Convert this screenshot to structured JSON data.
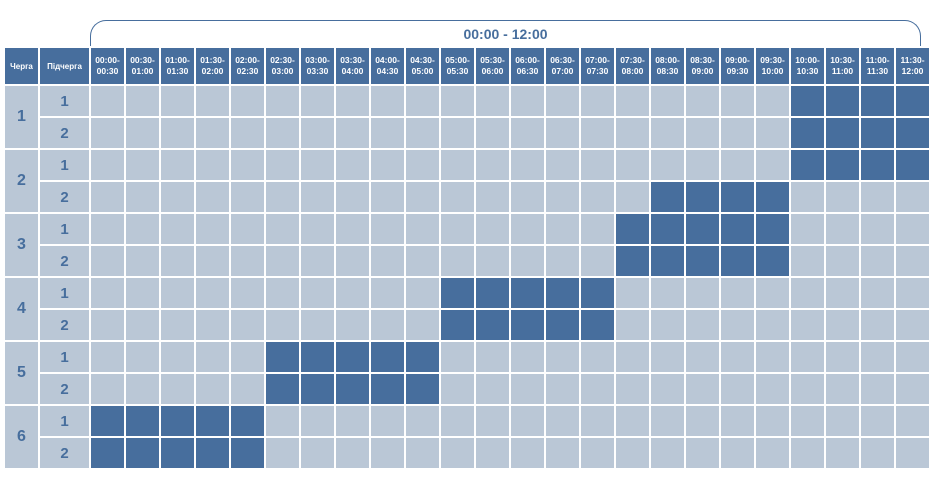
{
  "range_label": "00:00 - 12:00",
  "headers": {
    "queue": "Черга",
    "subqueue": "Підчерга"
  },
  "time_slots": [
    {
      "start": "00:00-",
      "end": "00:30"
    },
    {
      "start": "00:30-",
      "end": "01:00"
    },
    {
      "start": "01:00-",
      "end": "01:30"
    },
    {
      "start": "01:30-",
      "end": "02:00"
    },
    {
      "start": "02:00-",
      "end": "02:30"
    },
    {
      "start": "02:30-",
      "end": "03:00"
    },
    {
      "start": "03:00-",
      "end": "03:30"
    },
    {
      "start": "03:30-",
      "end": "04:00"
    },
    {
      "start": "04:00-",
      "end": "04:30"
    },
    {
      "start": "04:30-",
      "end": "05:00"
    },
    {
      "start": "05:00-",
      "end": "05:30"
    },
    {
      "start": "05:30-",
      "end": "06:00"
    },
    {
      "start": "06:00-",
      "end": "06:30"
    },
    {
      "start": "06:30-",
      "end": "07:00"
    },
    {
      "start": "07:00-",
      "end": "07:30"
    },
    {
      "start": "07:30-",
      "end": "08:00"
    },
    {
      "start": "08:00-",
      "end": "08:30"
    },
    {
      "start": "08:30-",
      "end": "09:00"
    },
    {
      "start": "09:00-",
      "end": "09:30"
    },
    {
      "start": "09:30-",
      "end": "10:00"
    },
    {
      "start": "10:00-",
      "end": "10:30"
    },
    {
      "start": "10:30-",
      "end": "11:00"
    },
    {
      "start": "11:00-",
      "end": "11:30"
    },
    {
      "start": "11:30-",
      "end": "12:00"
    }
  ],
  "colors": {
    "outage": "#476e9d",
    "power_on": "#bac7d6"
  },
  "queues": [
    {
      "label": "1",
      "subqueues": [
        {
          "label": "1",
          "slots": [
            0,
            0,
            0,
            0,
            0,
            0,
            0,
            0,
            0,
            0,
            0,
            0,
            0,
            0,
            0,
            0,
            0,
            0,
            0,
            0,
            1,
            1,
            1,
            1
          ]
        },
        {
          "label": "2",
          "slots": [
            0,
            0,
            0,
            0,
            0,
            0,
            0,
            0,
            0,
            0,
            0,
            0,
            0,
            0,
            0,
            0,
            0,
            0,
            0,
            0,
            1,
            1,
            1,
            1
          ]
        }
      ]
    },
    {
      "label": "2",
      "subqueues": [
        {
          "label": "1",
          "slots": [
            0,
            0,
            0,
            0,
            0,
            0,
            0,
            0,
            0,
            0,
            0,
            0,
            0,
            0,
            0,
            0,
            0,
            0,
            0,
            0,
            1,
            1,
            1,
            1
          ]
        },
        {
          "label": "2",
          "slots": [
            0,
            0,
            0,
            0,
            0,
            0,
            0,
            0,
            0,
            0,
            0,
            0,
            0,
            0,
            0,
            0,
            1,
            1,
            1,
            1,
            0,
            0,
            0,
            0
          ]
        }
      ]
    },
    {
      "label": "3",
      "subqueues": [
        {
          "label": "1",
          "slots": [
            0,
            0,
            0,
            0,
            0,
            0,
            0,
            0,
            0,
            0,
            0,
            0,
            0,
            0,
            0,
            1,
            1,
            1,
            1,
            1,
            0,
            0,
            0,
            0
          ]
        },
        {
          "label": "2",
          "slots": [
            0,
            0,
            0,
            0,
            0,
            0,
            0,
            0,
            0,
            0,
            0,
            0,
            0,
            0,
            0,
            1,
            1,
            1,
            1,
            1,
            0,
            0,
            0,
            0
          ]
        }
      ]
    },
    {
      "label": "4",
      "subqueues": [
        {
          "label": "1",
          "slots": [
            0,
            0,
            0,
            0,
            0,
            0,
            0,
            0,
            0,
            0,
            1,
            1,
            1,
            1,
            1,
            0,
            0,
            0,
            0,
            0,
            0,
            0,
            0,
            0
          ]
        },
        {
          "label": "2",
          "slots": [
            0,
            0,
            0,
            0,
            0,
            0,
            0,
            0,
            0,
            0,
            1,
            1,
            1,
            1,
            1,
            0,
            0,
            0,
            0,
            0,
            0,
            0,
            0,
            0
          ]
        }
      ]
    },
    {
      "label": "5",
      "subqueues": [
        {
          "label": "1",
          "slots": [
            0,
            0,
            0,
            0,
            0,
            1,
            1,
            1,
            1,
            1,
            0,
            0,
            0,
            0,
            0,
            0,
            0,
            0,
            0,
            0,
            0,
            0,
            0,
            0
          ]
        },
        {
          "label": "2",
          "slots": [
            0,
            0,
            0,
            0,
            0,
            1,
            1,
            1,
            1,
            1,
            0,
            0,
            0,
            0,
            0,
            0,
            0,
            0,
            0,
            0,
            0,
            0,
            0,
            0
          ]
        }
      ]
    },
    {
      "label": "6",
      "subqueues": [
        {
          "label": "1",
          "slots": [
            1,
            1,
            1,
            1,
            1,
            0,
            0,
            0,
            0,
            0,
            0,
            0,
            0,
            0,
            0,
            0,
            0,
            0,
            0,
            0,
            0,
            0,
            0,
            0
          ]
        },
        {
          "label": "2",
          "slots": [
            1,
            1,
            1,
            1,
            1,
            0,
            0,
            0,
            0,
            0,
            0,
            0,
            0,
            0,
            0,
            0,
            0,
            0,
            0,
            0,
            0,
            0,
            0,
            0
          ]
        }
      ]
    }
  ]
}
